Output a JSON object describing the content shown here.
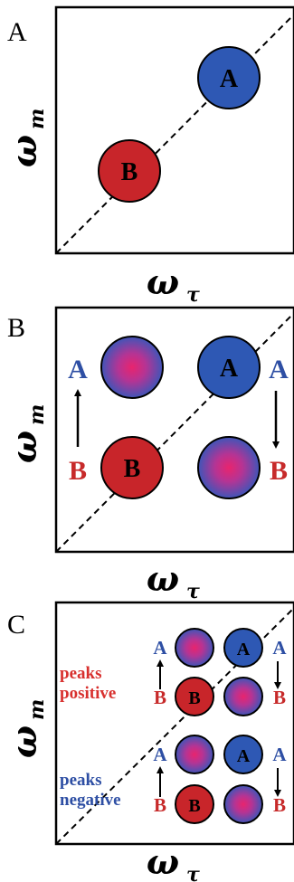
{
  "colors": {
    "peak_a": "#2e58b4",
    "peak_b": "#c8252a",
    "text_a": "#2e4fa4",
    "text_b": "#c72a2a",
    "pink_center": "#e8246e",
    "pink_edge": "#3f55b8"
  },
  "panel_a": {
    "label": "A",
    "peak_a_label": "A",
    "peak_b_label": "B",
    "y_axis_symbol": "ω",
    "y_axis_sub": "m",
    "x_axis_symbol": "ω",
    "x_axis_sub": "τ"
  },
  "panel_b": {
    "label": "B",
    "peak_a_label": "A",
    "peak_b_label": "B",
    "left_top": "A",
    "left_bottom": "B",
    "right_top": "A",
    "right_bottom": "B",
    "y_axis_symbol": "ω",
    "y_axis_sub": "m",
    "x_axis_symbol": "ω",
    "x_axis_sub": "τ"
  },
  "panel_c": {
    "label": "C",
    "peaks_positive_line1": "peaks",
    "peaks_positive_line2": "positive",
    "peaks_negative_line1": "peaks",
    "peaks_negative_line2": "negative",
    "peak_a_label": "A",
    "peak_b_label": "B",
    "side_top": "A",
    "side_bottom": "B",
    "y_axis_symbol": "ω",
    "y_axis_sub": "m",
    "x_axis_symbol": "ω",
    "x_axis_sub": "τ"
  }
}
